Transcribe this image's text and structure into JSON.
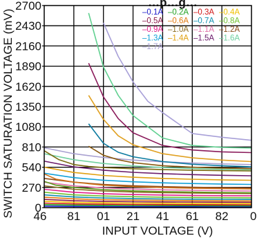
{
  "chart_data": {
    "type": "line",
    "title": "…p…g…",
    "xlabel": "INPUT VOLTAGE (V)",
    "ylabel": "SWITCH SATURATION VOLTAGE (mV)",
    "x_tick_labels": [
      "46",
      "81",
      "01",
      "21",
      "41",
      "61",
      "82",
      "0"
    ],
    "xlim": [
      0,
      7
    ],
    "y_ticks": [
      "0",
      "270",
      "540",
      "810",
      "1080",
      "1350",
      "1620",
      "1890",
      "2160",
      "2430",
      "2700"
    ],
    "ylim": [
      0,
      2700
    ],
    "grid": true,
    "legend_position": "top-right",
    "series": [
      {
        "name": "–0.1A",
        "color": "#1a1ac8",
        "x": [
          0,
          1,
          2,
          3,
          4,
          5,
          6,
          7
        ],
        "values": [
          20,
          16,
          14,
          13,
          12,
          11,
          10,
          10
        ]
      },
      {
        "name": "–0.2A",
        "color": "#20a020",
        "x": [
          0,
          1,
          2,
          3,
          4,
          5,
          6,
          7
        ],
        "values": [
          40,
          33,
          30,
          28,
          27,
          26,
          25,
          24
        ]
      },
      {
        "name": "–0.3A",
        "color": "#d01818",
        "x": [
          0,
          1,
          2,
          3,
          4,
          5,
          6,
          7
        ],
        "values": [
          60,
          50,
          45,
          42,
          40,
          39,
          38,
          37
        ]
      },
      {
        "name": "–0.4A",
        "color": "#f0c000",
        "x": [
          0,
          1,
          2,
          3,
          4,
          5,
          6,
          7
        ],
        "values": [
          85,
          70,
          64,
          60,
          58,
          56,
          55,
          54
        ]
      },
      {
        "name": "–0.5A",
        "color": "#8a1a4a",
        "x": [
          0,
          1,
          2,
          3,
          4,
          5,
          6,
          7
        ],
        "values": [
          110,
          92,
          84,
          79,
          76,
          74,
          72,
          71
        ]
      },
      {
        "name": "–0.6A",
        "color": "#e07a10",
        "x": [
          0,
          1,
          2,
          3,
          4,
          5,
          6,
          7
        ],
        "values": [
          140,
          117,
          106,
          100,
          96,
          93,
          91,
          90
        ]
      },
      {
        "name": "–0.7A",
        "color": "#1090b0",
        "x": [
          0,
          1,
          2,
          3,
          4,
          5,
          6,
          7
        ],
        "values": [
          170,
          142,
          129,
          121,
          116,
          113,
          111,
          109
        ]
      },
      {
        "name": "–0.8A",
        "color": "#70c030",
        "x": [
          0,
          1,
          2,
          3,
          4,
          5,
          6,
          7
        ],
        "values": [
          205,
          170,
          155,
          146,
          140,
          136,
          133,
          131
        ]
      },
      {
        "name": "–0.9A",
        "color": "#e0208a",
        "x": [
          0,
          1,
          2,
          3,
          4,
          5,
          6,
          7
        ],
        "values": [
          245,
          205,
          186,
          175,
          168,
          163,
          160,
          158
        ]
      },
      {
        "name": "–1.0A",
        "color": "#8a6a20",
        "x": [
          0,
          1,
          2,
          3,
          4,
          5,
          6,
          7
        ],
        "values": [
          290,
          245,
          222,
          209,
          200,
          195,
          191,
          188
        ]
      },
      {
        "name": "–1.1A",
        "color": "#e070a8",
        "x": [
          0,
          1,
          2,
          3,
          4,
          5,
          6,
          7
        ],
        "values": [
          340,
          290,
          264,
          248,
          238,
          231,
          226,
          222
        ]
      },
      {
        "name": "–1.2A",
        "color": "#8a4a18",
        "x": [
          0,
          1,
          2,
          3,
          4,
          5,
          6,
          7
        ],
        "values": [
          390,
          340,
          310,
          292,
          280,
          272,
          266,
          262
        ]
      },
      {
        "name": "–1.3A",
        "color": "#10a0d8",
        "x": [
          0,
          1,
          2,
          3,
          4,
          5,
          6,
          7
        ],
        "values": [
          460,
          400,
          366,
          345,
          331,
          322,
          315,
          310
        ]
      },
      {
        "name": "–1.4A",
        "color": "#e0a010",
        "x": [
          0,
          1,
          2,
          3,
          4,
          5,
          6,
          7
        ],
        "values": [
          540,
          470,
          430,
          406,
          390,
          379,
          371,
          365
        ]
      },
      {
        "name": "–1.5A",
        "color": "#6a1a6a",
        "x": [
          0,
          1,
          2,
          3,
          4,
          5,
          6,
          7
        ],
        "values": [
          620,
          545,
          500,
          472,
          454,
          441,
          432,
          425
        ]
      },
      {
        "name": "–1.6A",
        "color": "#70d0a0",
        "x": [
          0,
          1,
          2,
          3,
          4,
          5,
          6,
          7
        ],
        "values": [
          720,
          640,
          590,
          558,
          537,
          522,
          512,
          504
        ]
      },
      {
        "name": "–1.7A",
        "color": "#a8a0d0",
        "x": [
          0,
          1,
          2,
          3,
          4,
          5,
          6,
          7
        ],
        "values": [
          800,
          720,
          670,
          635,
          612,
          596,
          584,
          575
        ]
      },
      {
        "name": "",
        "color": "#d07018",
        "x": [
          0,
          0.4,
          1,
          2,
          3,
          4,
          5,
          6,
          7
        ],
        "values": [
          450,
          380,
          340,
          300,
          280,
          268,
          260,
          254,
          250
        ]
      },
      {
        "name": "",
        "color": "#5a9a1a",
        "x": [
          0,
          0.4,
          1,
          2,
          3,
          4,
          5,
          6,
          7
        ],
        "values": [
          350,
          300,
          270,
          240,
          224,
          214,
          207,
          202,
          199
        ]
      },
      {
        "name": "",
        "color": "#7a6a10",
        "x": [
          0,
          0.5,
          1,
          1.5,
          2,
          3,
          4,
          5,
          6,
          7
        ],
        "values": [
          760,
          640,
          575,
          550,
          535,
          520,
          508,
          500,
          494,
          490
        ]
      },
      {
        "name": "",
        "color": "#0a7aa0",
        "x": [
          1.5,
          2,
          2.5,
          3,
          4,
          5,
          6,
          7
        ],
        "values": [
          1120,
          860,
          740,
          680,
          615,
          580,
          560,
          545
        ]
      },
      {
        "name": "",
        "color": "#e0a020",
        "x": [
          1.5,
          2,
          2.5,
          3,
          4,
          5,
          6,
          7
        ],
        "values": [
          1500,
          1180,
          960,
          840,
          720,
          665,
          635,
          615
        ]
      },
      {
        "name": "",
        "color": "#8a1a5a",
        "x": [
          1.5,
          2,
          2.5,
          3,
          4,
          5,
          6,
          7
        ],
        "values": [
          1930,
          1480,
          1190,
          1000,
          830,
          770,
          745,
          735
        ]
      },
      {
        "name": "",
        "color": "#60d090",
        "x": [
          1.5,
          2,
          2.5,
          3,
          4,
          5,
          6,
          7
        ],
        "values": [
          2600,
          1880,
          1500,
          1230,
          930,
          830,
          805,
          795
        ]
      },
      {
        "name": "",
        "color": "#a8a0d8",
        "x": [
          2,
          2.5,
          3,
          3.5,
          4,
          5,
          6,
          7
        ],
        "values": [
          2470,
          2020,
          1680,
          1420,
          1270,
          990,
          940,
          900
        ]
      },
      {
        "name": "",
        "color": "#8a5a10",
        "x": [
          1.5,
          2,
          2.5,
          3,
          4,
          5,
          6,
          7
        ],
        "values": [
          820,
          700,
          640,
          600,
          560,
          540,
          528,
          520
        ]
      }
    ]
  }
}
